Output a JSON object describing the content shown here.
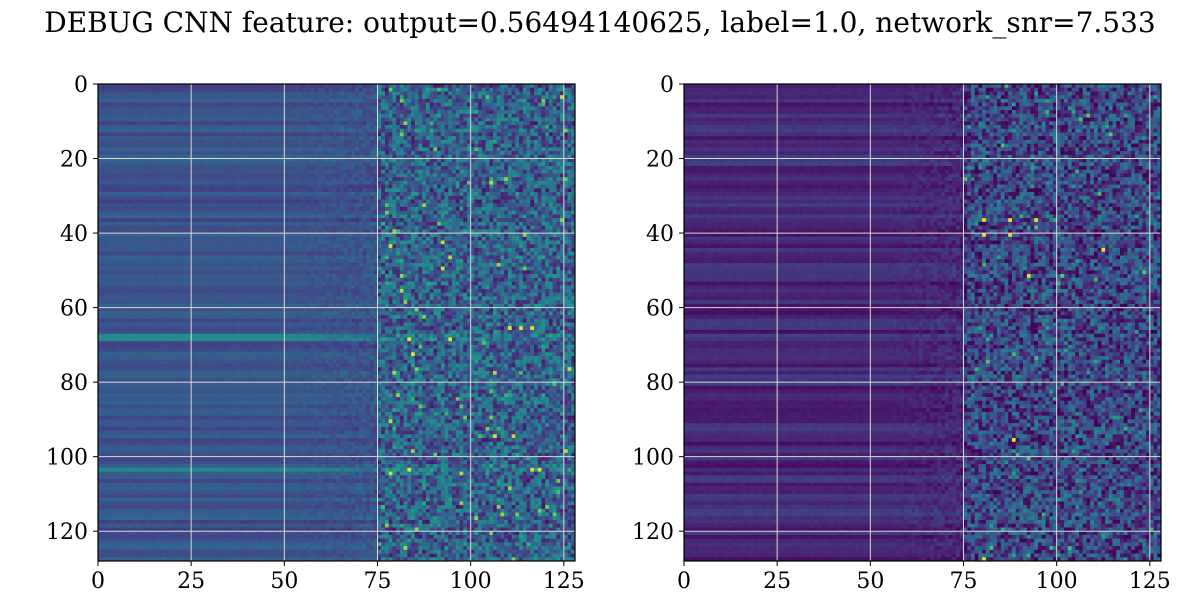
{
  "figure": {
    "title": "DEBUG CNN feature: output=0.56494140625, label=1.0, network_snr=7.533"
  },
  "chart_data": [
    {
      "type": "heatmap",
      "colormap": "viridis",
      "rows": 128,
      "cols": 128,
      "xlim": [
        0,
        128
      ],
      "ylim": [
        128,
        0
      ],
      "xticks": [
        0,
        25,
        50,
        75,
        100,
        125
      ],
      "yticks": [
        0,
        20,
        40,
        60,
        80,
        100,
        120
      ],
      "grid": true,
      "intensity_profile": {
        "col_ramp_start": 45,
        "col_noise_start": 75,
        "base_level": 0.32,
        "noisy_level": 0.38
      },
      "bright_rows": [
        67,
        68,
        103
      ],
      "bright_cells": [
        [
          65,
          110
        ],
        [
          65,
          113
        ],
        [
          65,
          116
        ],
        [
          68,
          83
        ],
        [
          68,
          94
        ],
        [
          103,
          83
        ],
        [
          103,
          116
        ],
        [
          103,
          118
        ]
      ]
    },
    {
      "type": "heatmap",
      "colormap": "viridis",
      "rows": 128,
      "cols": 128,
      "xlim": [
        0,
        128
      ],
      "ylim": [
        128,
        0
      ],
      "xticks": [
        0,
        25,
        50,
        75,
        100,
        125
      ],
      "yticks": [
        0,
        20,
        40,
        60,
        80,
        100,
        120
      ],
      "grid": true,
      "intensity_profile": {
        "col_ramp_start": 50,
        "col_noise_start": 75,
        "base_level": 0.14,
        "noisy_level": 0.26
      },
      "bright_rows": [],
      "bright_cells": [
        [
          36,
          80
        ],
        [
          36,
          87
        ],
        [
          36,
          94
        ],
        [
          40,
          80
        ],
        [
          40,
          87
        ],
        [
          44,
          112
        ],
        [
          51,
          92
        ],
        [
          95,
          88
        ],
        [
          127,
          80
        ]
      ]
    }
  ]
}
